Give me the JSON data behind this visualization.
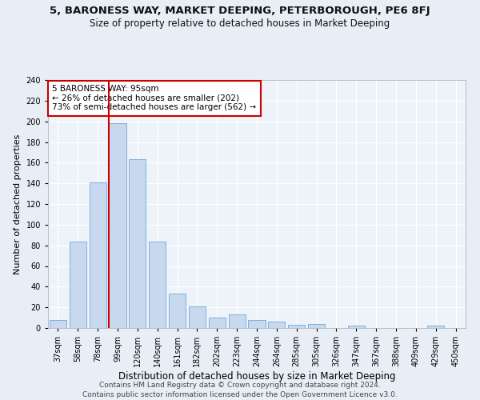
{
  "title": "5, BARONESS WAY, MARKET DEEPING, PETERBOROUGH, PE6 8FJ",
  "subtitle": "Size of property relative to detached houses in Market Deeping",
  "xlabel": "Distribution of detached houses by size in Market Deeping",
  "ylabel": "Number of detached properties",
  "categories": [
    "37sqm",
    "58sqm",
    "78sqm",
    "99sqm",
    "120sqm",
    "140sqm",
    "161sqm",
    "182sqm",
    "202sqm",
    "223sqm",
    "244sqm",
    "264sqm",
    "285sqm",
    "305sqm",
    "326sqm",
    "347sqm",
    "367sqm",
    "388sqm",
    "409sqm",
    "429sqm",
    "450sqm"
  ],
  "values": [
    8,
    84,
    141,
    198,
    163,
    84,
    33,
    21,
    10,
    13,
    8,
    6,
    3,
    4,
    0,
    2,
    0,
    0,
    0,
    2,
    0
  ],
  "bar_color": "#c8d9ef",
  "bar_edge_color": "#6aaad4",
  "vline_x_index": 3,
  "vline_color": "#cc0000",
  "annotation_text": "5 BARONESS WAY: 95sqm\n← 26% of detached houses are smaller (202)\n73% of semi-detached houses are larger (562) →",
  "annotation_box_facecolor": "#ffffff",
  "annotation_box_edgecolor": "#cc0000",
  "ylim": [
    0,
    240
  ],
  "yticks": [
    0,
    20,
    40,
    60,
    80,
    100,
    120,
    140,
    160,
    180,
    200,
    220,
    240
  ],
  "footer_text": "Contains HM Land Registry data © Crown copyright and database right 2024.\nContains public sector information licensed under the Open Government Licence v3.0.",
  "bg_color": "#e8eef5",
  "plot_bg_color": "#eef3f9",
  "grid_color": "#ffffff",
  "title_fontsize": 9.5,
  "subtitle_fontsize": 8.5,
  "xlabel_fontsize": 8.5,
  "ylabel_fontsize": 8,
  "tick_fontsize": 7,
  "annotation_fontsize": 7.5,
  "footer_fontsize": 6.5
}
